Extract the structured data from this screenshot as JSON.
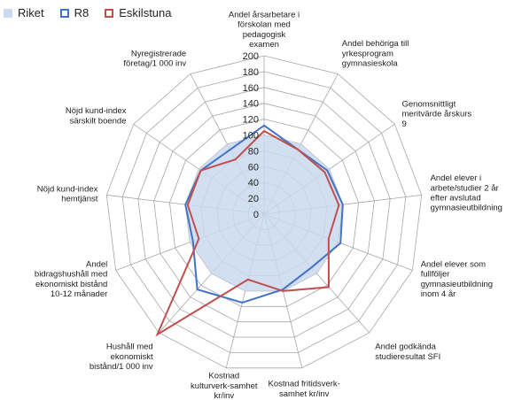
{
  "chart_data": {
    "type": "radar",
    "title": "",
    "rmax": 200,
    "ticks": [
      "0",
      "20",
      "40",
      "60",
      "80",
      "100",
      "120",
      "140",
      "160",
      "180",
      "200"
    ],
    "tick_values": [
      0,
      20,
      40,
      60,
      80,
      100,
      120,
      140,
      160,
      180,
      200
    ],
    "legend_position": "top-left",
    "categories": [
      "Andel årsarbetare i förskolan med pedagogisk examen",
      "Andel behöriga till yrkesprogram gymnasieskola",
      "Genomsnittligt meritvärde årskurs 9",
      "Andel elever i arbete/studier 2 år efter avslutad gymnasieutbildning",
      "Andel elever som fullföljer gymnasieutbildning inom 4 år",
      "Andel godkända studieresultat SFI",
      "Kostnad fritidsverk-samhet kr/inv",
      "Kostnad kulturverk-samhet kr/inv",
      "Hushåll med ekonomiskt bistånd/1 000 inv",
      "Andel bidragshushåll med ekonomiskt bistånd 10-12 månader",
      "Nöjd kund-index hemtjänst",
      "Nöjd kund-index särskilt boende",
      "Nyregistrerade företag/1 000 inv"
    ],
    "category_lines": [
      [
        "Andel årsarbetare i",
        "förskolan med",
        "pedagogisk",
        "examen"
      ],
      [
        "Andel behöriga till",
        "yrkesprogram",
        "gymnasieskola"
      ],
      [
        "Genomsnittligt",
        "meritvärde årskurs",
        "9"
      ],
      [
        "Andel elever i",
        "arbete/studier 2 år",
        "efter avslutad",
        "gymnasieutbildning"
      ],
      [
        "Andel elever som",
        "fullföljer",
        "gymnasieutbildning",
        "inom 4 år"
      ],
      [
        "Andel godkända",
        "studieresultat SFI"
      ],
      [
        "Kostnad fritidsverk-",
        "samhet kr/inv"
      ],
      [
        "Kostnad",
        "kulturverk-samhet",
        "kr/inv"
      ],
      [
        "Hushåll med",
        "ekonomiskt",
        "bistånd/1 000 inv"
      ],
      [
        "Andel",
        "bidragshushåll med",
        "ekonomiskt bistånd",
        "10-12 månader"
      ],
      [
        "Nöjd kund-index",
        "hemtjänst"
      ],
      [
        "Nöjd kund-index",
        "särskilt boende"
      ],
      [
        "Nyregistrerade",
        "företag/1 000 inv"
      ]
    ],
    "series": [
      {
        "name": "Riket",
        "style": "area",
        "color": "#c9d9ee",
        "values": [
          100,
          100,
          100,
          100,
          100,
          100,
          100,
          100,
          100,
          100,
          100,
          100,
          100
        ]
      },
      {
        "name": "R8",
        "style": "line",
        "color": "#4472c4",
        "values": [
          112,
          92,
          97,
          100,
          103,
          90,
          98,
          115,
          127,
          96,
          100,
          97,
          92
        ]
      },
      {
        "name": "Eskilstuna",
        "style": "line",
        "color": "#c0504d",
        "values": [
          105,
          92,
          93,
          95,
          87,
          123,
          100,
          85,
          203,
          88,
          97,
          97,
          78
        ]
      }
    ]
  }
}
